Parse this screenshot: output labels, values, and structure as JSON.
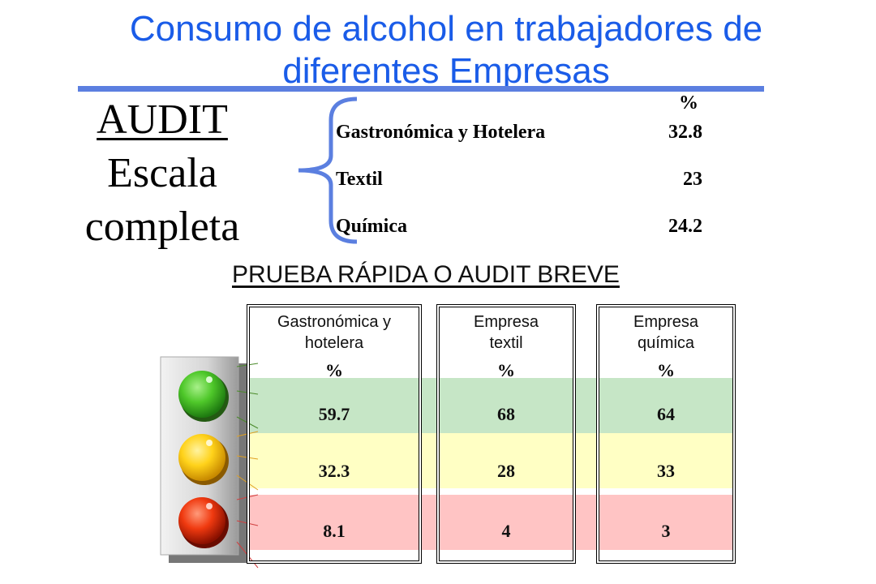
{
  "title": "Consumo de alcohol en trabajadores de diferentes Empresas",
  "audit_full": {
    "label_line1": "AUDIT",
    "label_line2": "Escala",
    "label_line3": "completa",
    "percent_header": "%",
    "rows": [
      {
        "name": "Gastronómica y Hotelera",
        "value": "32.8"
      },
      {
        "name": "Textil",
        "value": "23"
      },
      {
        "name": "Química",
        "value": "24.2"
      }
    ]
  },
  "audit_brief": {
    "subtitle": "PRUEBA RÁPIDA O AUDIT BREVE",
    "columns": [
      {
        "header_line1": "Gastronómica y",
        "header_line2": "hotelera",
        "percent": "%",
        "green": "59.7",
        "yellow": "32.3",
        "red": "8.1"
      },
      {
        "header_line1": "Empresa",
        "header_line2": "textil",
        "percent": "%",
        "green": "68",
        "yellow": "28",
        "red": "4"
      },
      {
        "header_line1": "Empresa",
        "header_line2": "química",
        "percent": "%",
        "green": "64",
        "yellow": "33",
        "red": "3"
      }
    ],
    "band_colors": {
      "green": "#c6e6c6",
      "yellow": "#ffffc4",
      "red": "#ffc4c4"
    }
  },
  "icons": [
    "brace-icon",
    "traffic-light-icon"
  ]
}
